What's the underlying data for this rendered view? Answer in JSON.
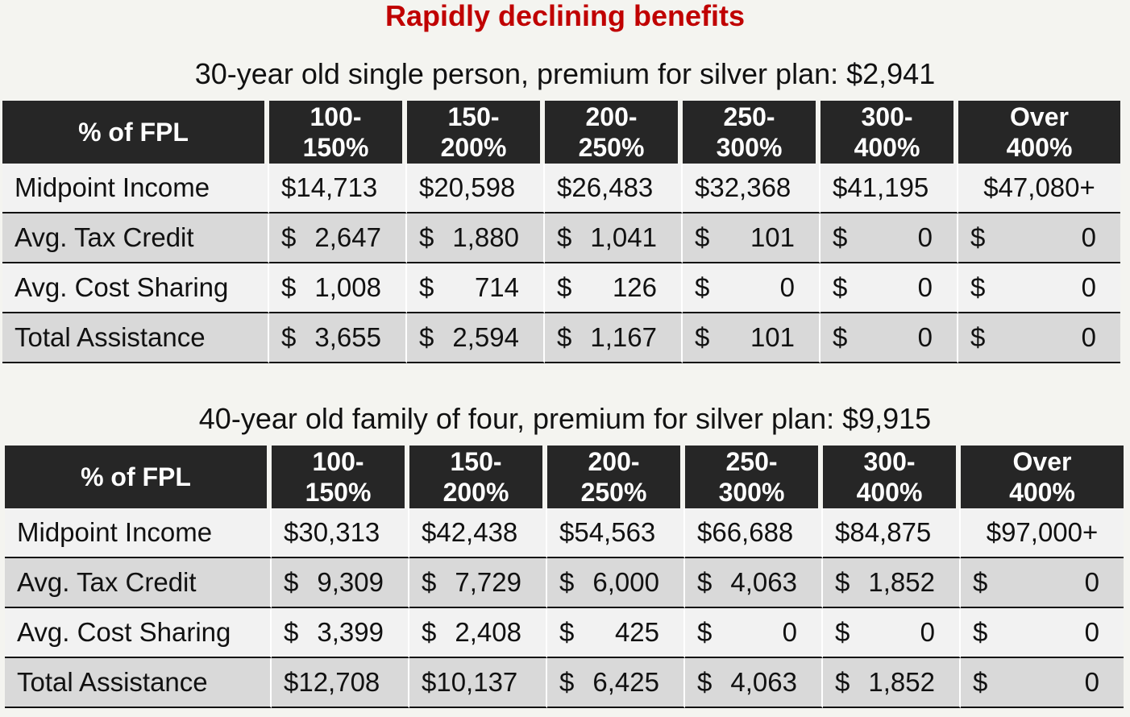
{
  "title": "Rapidly declining benefits",
  "tables": [
    {
      "subtitle": "30-year old single person, premium for silver plan: $2,941",
      "header": {
        "label": "% of FPL",
        "columns": [
          [
            "100-",
            "150%"
          ],
          [
            "150-",
            "200%"
          ],
          [
            "200-",
            "250%"
          ],
          [
            "250-",
            "300%"
          ],
          [
            "300-",
            "400%"
          ],
          [
            "Over",
            "400%"
          ]
        ]
      },
      "rows": [
        {
          "label": "Midpoint Income",
          "values": [
            "$14,713",
            "$20,598",
            "$26,483",
            "$32,368",
            "$41,195",
            "$47,080+"
          ]
        },
        {
          "label": "Avg. Tax Credit",
          "values": [
            "2,647",
            "1,880",
            "1,041",
            "101",
            "0",
            "0"
          ]
        },
        {
          "label": "Avg. Cost Sharing",
          "values": [
            "1,008",
            "714",
            "126",
            "0",
            "0",
            "0"
          ]
        },
        {
          "label": "Total Assistance",
          "values": [
            "3,655",
            "2,594",
            "1,167",
            "101",
            "0",
            "0"
          ]
        }
      ]
    },
    {
      "subtitle": "40-year old family of four, premium for silver plan: $9,915",
      "header": {
        "label": "% of FPL",
        "columns": [
          [
            "100-",
            "150%"
          ],
          [
            "150-",
            "200%"
          ],
          [
            "200-",
            "250%"
          ],
          [
            "250-",
            "300%"
          ],
          [
            "300-",
            "400%"
          ],
          [
            "Over",
            "400%"
          ]
        ]
      },
      "rows": [
        {
          "label": "Midpoint Income",
          "values": [
            "$30,313",
            "$42,438",
            "$54,563",
            "$66,688",
            "$84,875",
            "$97,000+"
          ]
        },
        {
          "label": "Avg. Tax Credit",
          "values": [
            "9,309",
            "7,729",
            "6,000",
            "4,063",
            "1,852",
            "0"
          ]
        },
        {
          "label": "Avg. Cost Sharing",
          "values": [
            "3,399",
            "2,408",
            "425",
            "0",
            "0",
            "0"
          ]
        },
        {
          "label": "Total Assistance",
          "values": [
            "$12,708",
            "$10,137",
            "6,425",
            "4,063",
            "1,852",
            "0"
          ]
        }
      ]
    }
  ],
  "currency_symbol": "$",
  "colors": {
    "title": "#c00000",
    "header_bg": "#262626",
    "row_light": "#f2f2f2",
    "row_dark": "#d9d9d9"
  }
}
